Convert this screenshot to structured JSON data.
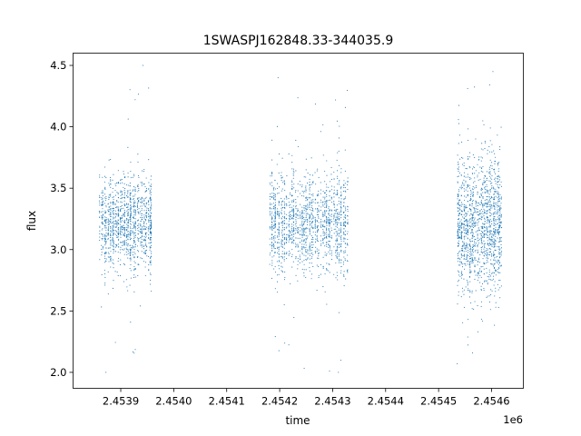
{
  "chart_data": {
    "type": "scatter",
    "title": "1SWASPJ162848.33-344035.9",
    "xlabel": "time",
    "ylabel": "flux",
    "x_offset_label": "1e6",
    "xlim": [
      2453810,
      2454660
    ],
    "ylim": [
      1.87,
      4.6
    ],
    "x_ticks": [
      2453900,
      2454000,
      2454100,
      2454200,
      2454300,
      2454400,
      2454500,
      2454600
    ],
    "x_tick_labels": [
      "2.4539",
      "2.4540",
      "2.4541",
      "2.4542",
      "2.4543",
      "2.4544",
      "2.4545",
      "2.4546"
    ],
    "y_ticks": [
      2.0,
      2.5,
      3.0,
      3.5,
      4.0,
      4.5
    ],
    "y_tick_labels": [
      "2.0",
      "2.5",
      "3.0",
      "3.5",
      "4.0",
      "4.5"
    ],
    "grid": false,
    "marker_color": "#1f77b4",
    "observing_seasons": [
      {
        "x_range": [
          2453860,
          2453960
        ],
        "center": 3.22,
        "spread": 0.19,
        "extremes": [
          2.0,
          4.5
        ]
      },
      {
        "x_range": [
          2454180,
          2454330
        ],
        "center": 3.22,
        "spread": 0.2,
        "extremes": [
          2.0,
          4.4
        ]
      },
      {
        "x_range": [
          2454535,
          2454620
        ],
        "center": 3.2,
        "spread": 0.28,
        "extremes": [
          2.07,
          4.45
        ]
      }
    ]
  }
}
